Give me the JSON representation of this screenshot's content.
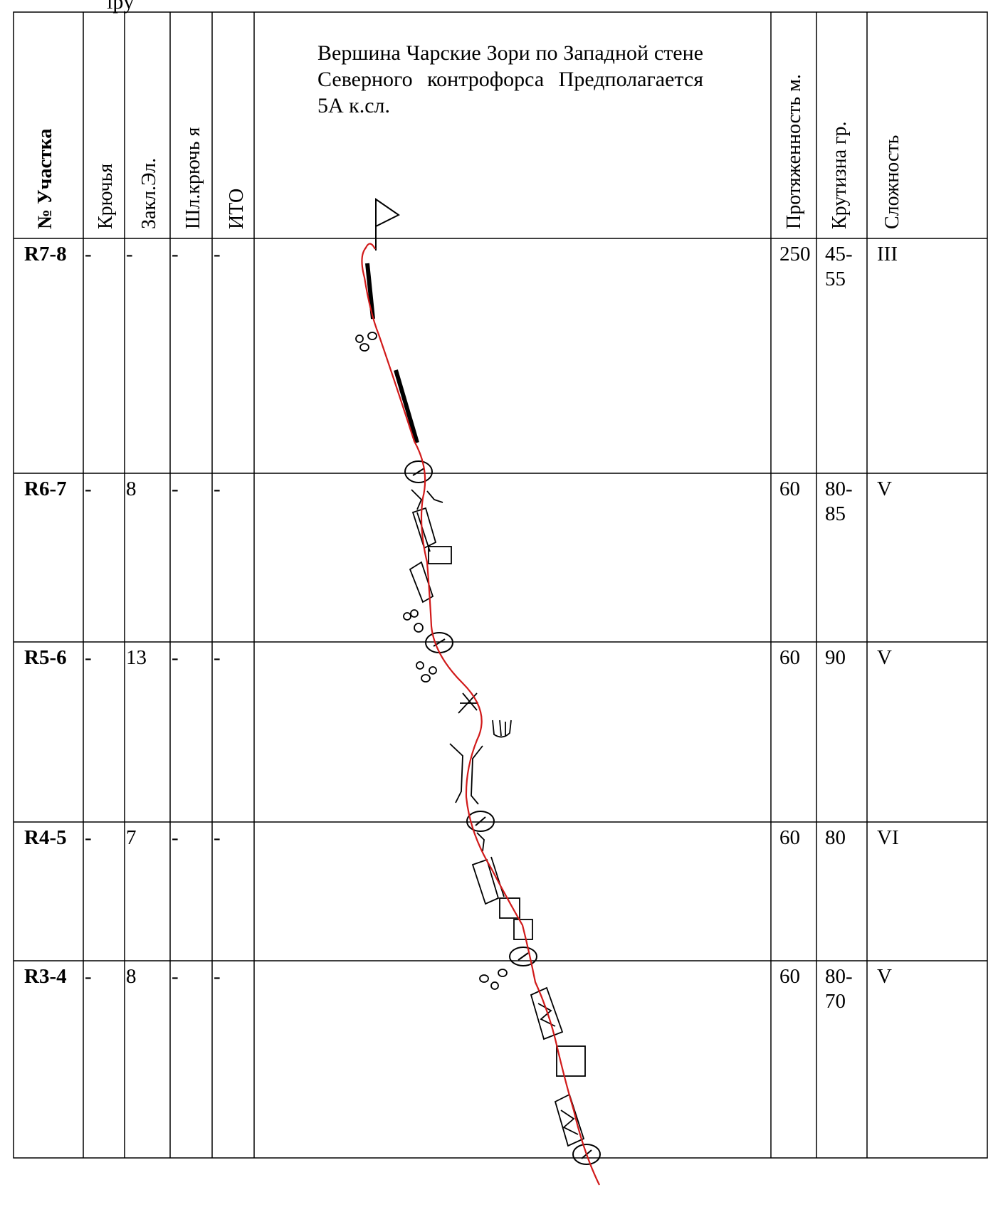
{
  "top_fragment": "ipy",
  "title": "Вершина Чарские Зори  по Западной стене Северного контрофорса Предполагается 5А к.сл.",
  "headers": {
    "section": "№ Участка",
    "pitons": "Крючья",
    "chocks": "Закл.Эл.",
    "bolts": "Шл.крючь я",
    "aid": "ИТО",
    "length": "Протяженность м.",
    "steepness": "Крутизна гр.",
    "difficulty": "Сложность"
  },
  "rows": [
    {
      "section": "R7-8",
      "pitons": "-",
      "chocks": "-",
      "bolts": "-",
      "aid": "-",
      "length": "250",
      "steepness": "45-\n55",
      "difficulty": "III"
    },
    {
      "section": "R6-7",
      "pitons": "-",
      "chocks": "8",
      "bolts": "-",
      "aid": "-",
      "length": "60",
      "steepness": "80-\n85",
      "difficulty": "V"
    },
    {
      "section": "R5-6",
      "pitons": "-",
      "chocks": "13",
      "bolts": "-",
      "aid": "-",
      "length": "60",
      "steepness": "90",
      "difficulty": "V"
    },
    {
      "section": "R4-5",
      "pitons": "-",
      "chocks": "7",
      "bolts": "-",
      "aid": "-",
      "length": "60",
      "steepness": "80",
      "difficulty": "VI"
    },
    {
      "section": "R3-4",
      "pitons": "-",
      "chocks": "8",
      "bolts": "-",
      "aid": "-",
      "length": "60",
      "steepness": "80-\n70",
      "difficulty": "V"
    }
  ],
  "colors": {
    "route_line": "#d11a1a",
    "border": "#000000"
  }
}
